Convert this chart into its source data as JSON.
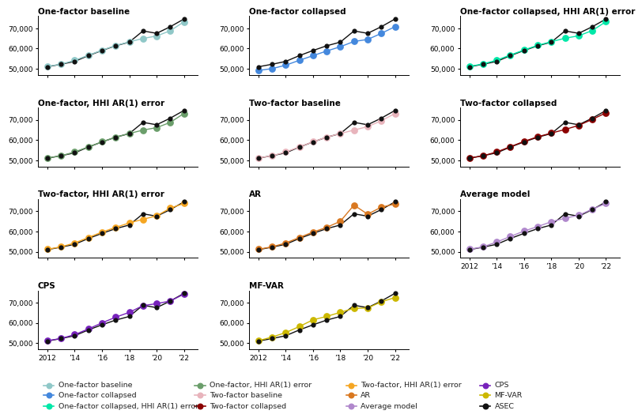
{
  "years": [
    2012,
    2013,
    2014,
    2015,
    2016,
    2017,
    2018,
    2019,
    2020,
    2021,
    2022
  ],
  "asec": [
    51017,
    52250,
    53657,
    56516,
    59039,
    61372,
    63179,
    68703,
    67521,
    70784,
    74580
  ],
  "models": {
    "one_factor_baseline": {
      "title": "One-factor baseline",
      "color": "#90c8c8",
      "values": [
        51200,
        52300,
        54200,
        56700,
        59200,
        61500,
        63300,
        65000,
        66200,
        68800,
        73200
      ]
    },
    "one_factor_collapsed": {
      "title": "One-factor collapsed",
      "color": "#4488dd",
      "values": [
        49200,
        50100,
        51800,
        54200,
        56500,
        58800,
        60900,
        63500,
        64500,
        67500,
        70800
      ]
    },
    "one_factor_collapsed_hhi": {
      "title": "One-factor collapsed, HHI AR(1) error",
      "color": "#00e8a8",
      "values": [
        51200,
        52400,
        54300,
        56800,
        59300,
        61600,
        63400,
        65100,
        66300,
        68900,
        73300
      ]
    },
    "one_factor_hhi": {
      "title": "One-factor, HHI AR(1) error",
      "color": "#6b9e6b",
      "values": [
        51100,
        52200,
        54100,
        56600,
        59100,
        61400,
        63200,
        64900,
        66100,
        68700,
        73100
      ]
    },
    "two_factor_baseline": {
      "title": "Two-factor baseline",
      "color": "#e8b4bc",
      "values": [
        51100,
        52200,
        54100,
        56600,
        59100,
        61400,
        63200,
        64900,
        66600,
        69500,
        73100
      ]
    },
    "two_factor_collapsed": {
      "title": "Two-factor collapsed",
      "color": "#8b0000",
      "values": [
        51100,
        52200,
        54100,
        56700,
        59300,
        61600,
        63400,
        65200,
        67200,
        70200,
        73400
      ]
    },
    "two_factor_hhi": {
      "title": "Two-factor, HHI AR(1) error",
      "color": "#f5a623",
      "values": [
        51200,
        52400,
        54300,
        57000,
        59700,
        62000,
        64200,
        66000,
        67700,
        71500,
        73800
      ]
    },
    "ar": {
      "title": "AR",
      "color": "#d97820",
      "values": [
        51200,
        52400,
        54300,
        57000,
        59700,
        62000,
        65000,
        73000,
        68500,
        72000,
        73500
      ]
    },
    "average_model": {
      "title": "Average model",
      "color": "#b088cc",
      "values": [
        51200,
        52400,
        54800,
        57500,
        60200,
        62400,
        64800,
        66500,
        68000,
        71000,
        73800
      ]
    },
    "cps": {
      "title": "CPS",
      "color": "#7722bb",
      "values": [
        51200,
        52300,
        54200,
        57000,
        60000,
        62800,
        65200,
        68500,
        69500,
        70800,
        74200
      ]
    },
    "mf_var": {
      "title": "MF-VAR",
      "color": "#ccb800",
      "values": [
        51200,
        53000,
        55200,
        58200,
        61500,
        63200,
        65200,
        67200,
        67300,
        70400,
        72500
      ]
    }
  },
  "panel_order": [
    "one_factor_baseline",
    "one_factor_collapsed",
    "one_factor_collapsed_hhi",
    "one_factor_hhi",
    "two_factor_baseline",
    "two_factor_collapsed",
    "two_factor_hhi",
    "ar",
    "average_model",
    "cps",
    "mf_var"
  ],
  "ylim_default": [
    47000,
    76000
  ],
  "ylim_collapsed": [
    47000,
    76000
  ],
  "yticks": [
    50000,
    60000,
    70000
  ],
  "xticks": [
    2012,
    2014,
    2016,
    2018,
    2020,
    2022
  ],
  "xticklabels": [
    "2012",
    "’14",
    "’16",
    "’18",
    "’20",
    "’22"
  ],
  "asec_color": "#111111",
  "legend_items": [
    {
      "label": "One-factor baseline",
      "color": "#90c8c8"
    },
    {
      "label": "One-factor collapsed",
      "color": "#4488dd"
    },
    {
      "label": "One-factor collapsed, HHI AR(1) error",
      "color": "#00e8a8"
    },
    {
      "label": "One-factor, HHI AR(1) error",
      "color": "#6b9e6b"
    },
    {
      "label": "Two-factor baseline",
      "color": "#e8b4bc"
    },
    {
      "label": "Two-factor collapsed",
      "color": "#8b0000"
    },
    {
      "label": "Two-factor, HHI AR(1) error",
      "color": "#f5a623"
    },
    {
      "label": "AR",
      "color": "#d97820"
    },
    {
      "label": "Average model",
      "color": "#b088cc"
    },
    {
      "label": "CPS",
      "color": "#7722bb"
    },
    {
      "label": "MF-VAR",
      "color": "#ccb800"
    },
    {
      "label": "ASEC",
      "color": "#111111"
    }
  ]
}
